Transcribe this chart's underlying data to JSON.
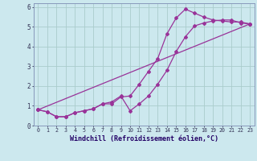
{
  "background_color": "#cce8ee",
  "grid_color": "#aacccc",
  "line_color": "#993399",
  "marker": "D",
  "markersize": 2,
  "linewidth": 0.9,
  "xlim": [
    -0.5,
    23.5
  ],
  "ylim": [
    0,
    6.2
  ],
  "xlabel": "Windchill (Refroidissement éolien,°C)",
  "xlabel_fontsize": 6,
  "xtick_fontsize": 4.8,
  "ytick_fontsize": 5.5,
  "line1_x": [
    0,
    1,
    2,
    3,
    4,
    5,
    6,
    7,
    8,
    9,
    10,
    11,
    12,
    13,
    14,
    15,
    16,
    17,
    18,
    19,
    20,
    21,
    22,
    23
  ],
  "line1_y": [
    0.8,
    0.7,
    0.45,
    0.45,
    0.65,
    0.75,
    0.85,
    1.1,
    1.1,
    1.45,
    1.5,
    2.1,
    2.75,
    3.4,
    4.65,
    5.45,
    5.9,
    5.7,
    5.5,
    5.35,
    5.3,
    5.25,
    5.25,
    5.15
  ],
  "line2_x": [
    0,
    1,
    2,
    3,
    4,
    5,
    6,
    7,
    8,
    9,
    10,
    11,
    12,
    13,
    14,
    15,
    16,
    17,
    18,
    19,
    20,
    21,
    22,
    23
  ],
  "line2_y": [
    0.8,
    0.7,
    0.45,
    0.45,
    0.65,
    0.75,
    0.85,
    1.1,
    1.2,
    1.5,
    0.75,
    1.1,
    1.5,
    2.1,
    2.8,
    3.75,
    4.5,
    5.05,
    5.2,
    5.3,
    5.35,
    5.35,
    5.2,
    5.15
  ],
  "line3_x": [
    0,
    23
  ],
  "line3_y": [
    0.8,
    5.15
  ]
}
